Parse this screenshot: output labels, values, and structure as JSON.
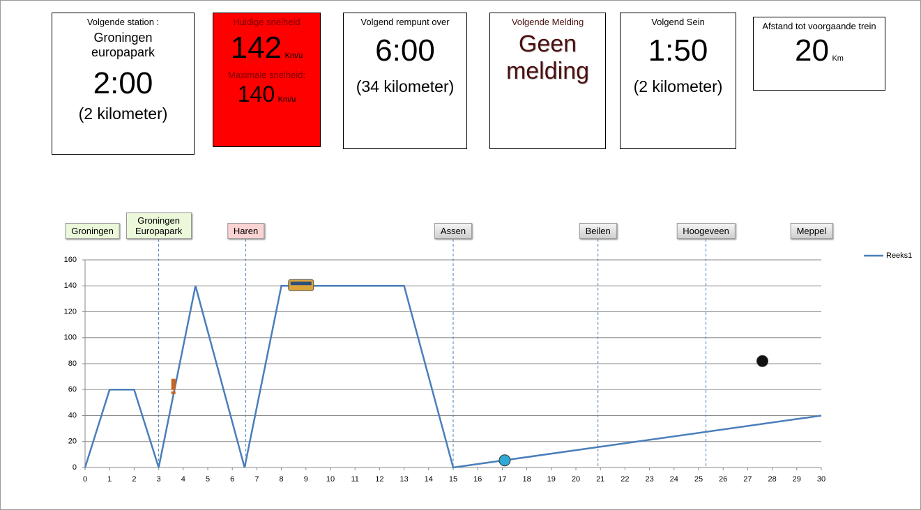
{
  "panels": [
    {
      "label": "Volgende station :",
      "name": "Groningen europapark",
      "value": "2:00",
      "detail": "(2 kilometer)"
    },
    {
      "label": "Huidige snelheid",
      "value": "142",
      "unit": "Km/u",
      "label2": "Maximale snelheid:",
      "value2": "140",
      "unit2": "Km/u"
    },
    {
      "label": "Volgend rempunt over",
      "value": "6:00",
      "detail": "(34 kilometer)"
    },
    {
      "label": "Volgende Melding",
      "value": "Geen melding"
    },
    {
      "label": "Volgend Sein",
      "value": "1:50",
      "detail": "(2 kilometer)"
    },
    {
      "label": "Afstand tot voorgaande trein",
      "value": "20",
      "unit": "Km"
    }
  ],
  "chart_data": {
    "type": "line",
    "series": [
      {
        "name": "Reeks1",
        "color": "#4a7ebb",
        "x": [
          0,
          1,
          2,
          3,
          4.5,
          6.5,
          8,
          13,
          15,
          30
        ],
        "values": [
          0,
          60,
          60,
          0,
          140,
          0,
          140,
          140,
          0,
          40
        ]
      }
    ],
    "xlim": [
      0,
      30
    ],
    "xticks": [
      0,
      1,
      2,
      3,
      4,
      5,
      6,
      7,
      8,
      9,
      10,
      11,
      12,
      13,
      14,
      15,
      16,
      17,
      18,
      19,
      20,
      21,
      22,
      23,
      24,
      25,
      26,
      27,
      28,
      29,
      30
    ],
    "ylim": [
      0,
      160
    ],
    "yticks": [
      0,
      20,
      40,
      60,
      80,
      100,
      120,
      140,
      160
    ],
    "grid": true,
    "legend": "right",
    "stations": [
      {
        "name": "Groningen",
        "x": 0.3,
        "color": "#ebf8d9",
        "line": false
      },
      {
        "name": "Groningen Europapark",
        "x": 3,
        "color": "#ebf8d9",
        "line": true
      },
      {
        "name": "Haren",
        "x": 6.55,
        "color": "#fbd3d3",
        "line": true
      },
      {
        "name": "Assen",
        "x": 15,
        "color": "#dcdcdc",
        "line": true
      },
      {
        "name": "Beilen",
        "x": 20.9,
        "color": "#dcdcdc",
        "line": true
      },
      {
        "name": "Hoogeveen",
        "x": 25.3,
        "color": "#dcdcdc",
        "line": true
      },
      {
        "name": "Meppel",
        "x": 29.6,
        "color": "#dcdcdc",
        "line": false
      }
    ],
    "markers": [
      {
        "x": 8.8,
        "y": 140,
        "kind": "train"
      },
      {
        "x": 3.6,
        "y": 63,
        "kind": "warning"
      },
      {
        "x": 17.1,
        "y": 5.5,
        "kind": "own",
        "color": "#2fa9d6"
      },
      {
        "x": 27.6,
        "y": 82,
        "kind": "other",
        "color": "#111111"
      }
    ]
  }
}
